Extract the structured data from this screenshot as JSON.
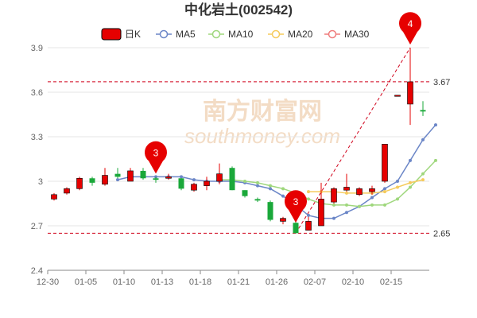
{
  "chart_data": {
    "type": "candlestick",
    "title": "中化岩土(002542)",
    "legend": [
      {
        "label": "日K",
        "color": "#e60000"
      },
      {
        "label": "MA5",
        "color": "#6b86c7"
      },
      {
        "label": "MA10",
        "color": "#9fd77d"
      },
      {
        "label": "MA20",
        "color": "#f5cb5c"
      },
      {
        "label": "MA30",
        "color": "#ef7c7c"
      }
    ],
    "colors": {
      "up": "#e60000",
      "down": "#1aa83a",
      "reference": "#d0021b",
      "axis": "#888888",
      "grid": "#e6e6e6"
    },
    "ylim": [
      2.4,
      3.9
    ],
    "yticks": [
      2.4,
      2.7,
      3,
      3.3,
      3.6,
      3.9
    ],
    "ytick_labels": [
      "2.4",
      "2.7",
      "3",
      "3.3",
      "3.6",
      "3.9"
    ],
    "xtick_labels": [
      {
        "index": 0,
        "label": "12-30"
      },
      {
        "index": 3,
        "label": "01-05"
      },
      {
        "index": 6,
        "label": "01-10"
      },
      {
        "index": 9,
        "label": "01-13"
      },
      {
        "index": 12,
        "label": "01-18"
      },
      {
        "index": 15,
        "label": "01-21"
      },
      {
        "index": 18,
        "label": "01-26"
      },
      {
        "index": 21,
        "label": "02-07"
      },
      {
        "index": 24,
        "label": "02-10"
      },
      {
        "index": 27,
        "label": "02-15"
      }
    ],
    "candles": [
      {
        "o": 2.88,
        "c": 2.91,
        "h": 2.92,
        "l": 2.87
      },
      {
        "o": 2.92,
        "c": 2.95,
        "h": 2.96,
        "l": 2.91
      },
      {
        "o": 2.95,
        "c": 3.02,
        "h": 3.03,
        "l": 2.94
      },
      {
        "o": 3.02,
        "c": 2.99,
        "h": 3.03,
        "l": 2.97
      },
      {
        "o": 2.98,
        "c": 3.04,
        "h": 3.09,
        "l": 2.97
      },
      {
        "o": 3.05,
        "c": 3.03,
        "h": 3.09,
        "l": 3.02
      },
      {
        "o": 3.0,
        "c": 3.07,
        "h": 3.09,
        "l": 3.0
      },
      {
        "o": 3.07,
        "c": 3.02,
        "h": 3.09,
        "l": 3.01
      },
      {
        "o": 3.02,
        "c": 3.01,
        "h": 3.03,
        "l": 2.99
      },
      {
        "o": 3.02,
        "c": 3.03,
        "h": 3.05,
        "l": 3.01
      },
      {
        "o": 3.02,
        "c": 2.95,
        "h": 3.02,
        "l": 2.94
      },
      {
        "o": 2.94,
        "c": 2.98,
        "h": 2.99,
        "l": 2.93
      },
      {
        "o": 2.97,
        "c": 3.0,
        "h": 3.03,
        "l": 2.94
      },
      {
        "o": 3.0,
        "c": 3.05,
        "h": 3.12,
        "l": 2.98
      },
      {
        "o": 3.09,
        "c": 2.94,
        "h": 3.1,
        "l": 2.94
      },
      {
        "o": 2.94,
        "c": 2.9,
        "h": 2.94,
        "l": 2.89
      },
      {
        "o": 2.88,
        "c": 2.87,
        "h": 2.89,
        "l": 2.86
      },
      {
        "o": 2.86,
        "c": 2.74,
        "h": 2.87,
        "l": 2.73
      },
      {
        "o": 2.73,
        "c": 2.75,
        "h": 2.76,
        "l": 2.71
      },
      {
        "o": 2.72,
        "c": 2.65,
        "h": 2.75,
        "l": 2.65
      },
      {
        "o": 2.67,
        "c": 2.73,
        "h": 2.76,
        "l": 2.67
      },
      {
        "o": 2.7,
        "c": 2.88,
        "h": 2.99,
        "l": 2.7
      },
      {
        "o": 2.86,
        "c": 2.95,
        "h": 2.96,
        "l": 2.85
      },
      {
        "o": 2.94,
        "c": 2.96,
        "h": 3.05,
        "l": 2.93
      },
      {
        "o": 2.91,
        "c": 2.95,
        "h": 2.96,
        "l": 2.9
      },
      {
        "o": 2.93,
        "c": 2.95,
        "h": 2.97,
        "l": 2.91
      },
      {
        "o": 3.0,
        "c": 3.25,
        "h": 3.25,
        "l": 2.99
      },
      {
        "o": 3.58,
        "c": 3.58,
        "h": 3.58,
        "l": 3.58
      },
      {
        "o": 3.52,
        "c": 3.67,
        "h": 3.9,
        "l": 3.38
      },
      {
        "o": 3.48,
        "c": 3.47,
        "h": 3.54,
        "l": 3.44
      }
    ],
    "ma_lines": [
      {
        "name": "MA5",
        "start": 5,
        "values": [
          3.01,
          3.03,
          3.03,
          3.03,
          3.03,
          3.03,
          3.01,
          3.0,
          3.0,
          3.0,
          2.99,
          2.97,
          2.95,
          2.9,
          2.84,
          2.77,
          2.75,
          2.75,
          2.79,
          2.83,
          2.89,
          2.95,
          3.0,
          3.14,
          3.28,
          3.38
        ]
      },
      {
        "name": "MA10",
        "start": 13,
        "values": [
          3.01,
          3.01,
          3.0,
          2.99,
          2.97,
          2.95,
          2.92,
          2.88,
          2.85,
          2.84,
          2.84,
          2.83,
          2.84,
          2.84,
          2.88,
          2.96,
          3.05,
          3.14
        ]
      },
      {
        "name": "MA20",
        "start": 20,
        "values": [
          2.93,
          2.93,
          2.93,
          2.92,
          2.92,
          2.92,
          2.93,
          2.96,
          2.99,
          3.01
        ]
      }
    ],
    "reference_lines": [
      {
        "value": 3.67,
        "label": "3.67"
      },
      {
        "value": 2.65,
        "label": "2.65"
      }
    ],
    "markers": [
      {
        "index": 8,
        "value": 3.03,
        "label": "3"
      },
      {
        "index": 19,
        "value": 2.7,
        "label": "3"
      },
      {
        "index": 28,
        "value": 3.9,
        "label": "4"
      }
    ],
    "watermark": {
      "main": "南方财富网",
      "sub": "southmoney.com"
    }
  }
}
